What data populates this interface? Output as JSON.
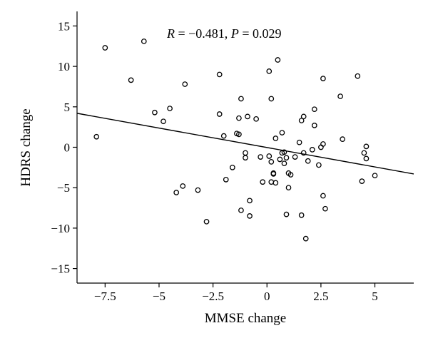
{
  "chart_data": {
    "type": "scatter",
    "title": "",
    "xlabel": "MMSE change",
    "ylabel": "HDRS change",
    "annotation": {
      "r_label": "R",
      "r_value": " = −0.481, ",
      "p_label": "P",
      "p_value": " = 0.029"
    },
    "xlim": [
      -8.8,
      6.8
    ],
    "ylim": [
      -16.8,
      16.8
    ],
    "xticks": [
      -7.5,
      -5,
      -2.5,
      0,
      2.5,
      5
    ],
    "xtick_labels": [
      "−7.5",
      "−5",
      "−2.5",
      "0",
      "2.5",
      "5"
    ],
    "yticks": [
      -15,
      -10,
      -5,
      0,
      5,
      10,
      15
    ],
    "ytick_labels": [
      "−15",
      "−10",
      "−5",
      "0",
      "5",
      "10",
      "15"
    ],
    "grid": false,
    "regression_line": {
      "x": [
        -8.8,
        6.8
      ],
      "y": [
        4.2,
        -3.3
      ]
    },
    "points": [
      {
        "x": -7.9,
        "y": 1.3
      },
      {
        "x": -7.5,
        "y": 12.3
      },
      {
        "x": -6.3,
        "y": 8.3
      },
      {
        "x": -5.7,
        "y": 13.1
      },
      {
        "x": -5.2,
        "y": 4.3
      },
      {
        "x": -4.8,
        "y": 3.2
      },
      {
        "x": -4.5,
        "y": 4.8
      },
      {
        "x": -4.2,
        "y": -5.6
      },
      {
        "x": -3.9,
        "y": -4.8
      },
      {
        "x": -3.8,
        "y": 7.8
      },
      {
        "x": -3.2,
        "y": -5.3
      },
      {
        "x": -2.8,
        "y": -9.2
      },
      {
        "x": -2.2,
        "y": 9.0
      },
      {
        "x": -2.2,
        "y": 4.1
      },
      {
        "x": -2.0,
        "y": 1.4
      },
      {
        "x": -1.9,
        "y": -4.0
      },
      {
        "x": -1.6,
        "y": -2.5
      },
      {
        "x": -1.4,
        "y": 1.7
      },
      {
        "x": -1.3,
        "y": 1.6
      },
      {
        "x": -1.3,
        "y": 3.6
      },
      {
        "x": -1.2,
        "y": 6.0
      },
      {
        "x": -1.2,
        "y": -7.8
      },
      {
        "x": -1.0,
        "y": -0.7
      },
      {
        "x": -1.0,
        "y": -1.3
      },
      {
        "x": -0.9,
        "y": 3.8
      },
      {
        "x": -0.8,
        "y": -6.6
      },
      {
        "x": -0.8,
        "y": -8.5
      },
      {
        "x": -0.5,
        "y": 3.5
      },
      {
        "x": -0.3,
        "y": -1.2
      },
      {
        "x": -0.2,
        "y": -4.3
      },
      {
        "x": 0.1,
        "y": 9.4
      },
      {
        "x": 0.1,
        "y": -1.1
      },
      {
        "x": 0.2,
        "y": 6.0
      },
      {
        "x": 0.2,
        "y": -1.8
      },
      {
        "x": 0.2,
        "y": -4.3
      },
      {
        "x": 0.3,
        "y": -3.3
      },
      {
        "x": 0.3,
        "y": -3.2
      },
      {
        "x": 0.4,
        "y": 1.1
      },
      {
        "x": 0.4,
        "y": -4.4
      },
      {
        "x": 0.5,
        "y": 10.8
      },
      {
        "x": 0.6,
        "y": -1.5
      },
      {
        "x": 0.7,
        "y": -0.7
      },
      {
        "x": 0.7,
        "y": 1.8
      },
      {
        "x": 0.8,
        "y": -0.6
      },
      {
        "x": 0.8,
        "y": -2.0
      },
      {
        "x": 0.9,
        "y": -1.3
      },
      {
        "x": 0.9,
        "y": -8.3
      },
      {
        "x": 1.0,
        "y": -3.2
      },
      {
        "x": 1.0,
        "y": -5.0
      },
      {
        "x": 1.1,
        "y": -3.4
      },
      {
        "x": 1.3,
        "y": -1.2
      },
      {
        "x": 1.5,
        "y": 0.6
      },
      {
        "x": 1.6,
        "y": 3.3
      },
      {
        "x": 1.6,
        "y": -8.4
      },
      {
        "x": 1.7,
        "y": 3.8
      },
      {
        "x": 1.7,
        "y": -0.7
      },
      {
        "x": 1.8,
        "y": -11.3
      },
      {
        "x": 1.9,
        "y": -1.7
      },
      {
        "x": 2.1,
        "y": -0.3
      },
      {
        "x": 2.2,
        "y": 4.7
      },
      {
        "x": 2.2,
        "y": 2.7
      },
      {
        "x": 2.4,
        "y": -2.2
      },
      {
        "x": 2.5,
        "y": 0.0
      },
      {
        "x": 2.6,
        "y": 8.5
      },
      {
        "x": 2.6,
        "y": 0.4
      },
      {
        "x": 2.6,
        "y": -6.0
      },
      {
        "x": 2.7,
        "y": -7.6
      },
      {
        "x": 3.4,
        "y": 6.3
      },
      {
        "x": 3.5,
        "y": 1.0
      },
      {
        "x": 4.2,
        "y": 8.8
      },
      {
        "x": 4.4,
        "y": -4.2
      },
      {
        "x": 4.5,
        "y": -0.7
      },
      {
        "x": 4.6,
        "y": 0.1
      },
      {
        "x": 4.6,
        "y": -1.4
      },
      {
        "x": 5.0,
        "y": -3.5
      }
    ]
  }
}
